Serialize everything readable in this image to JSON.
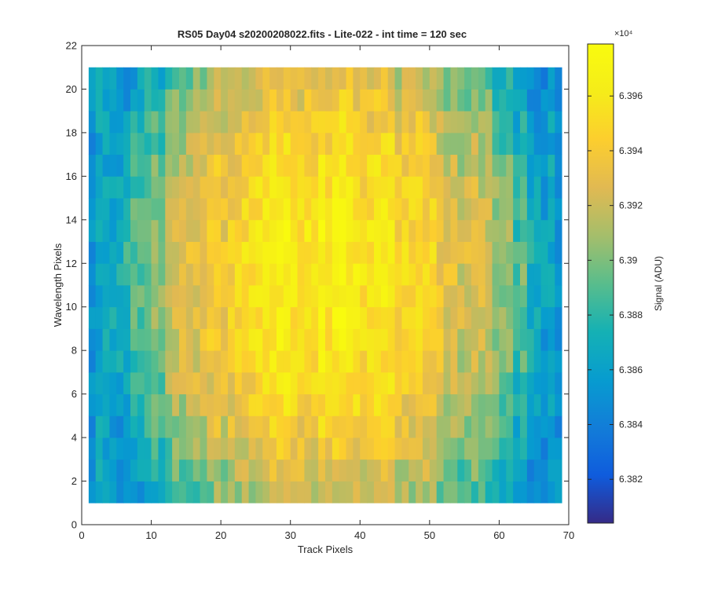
{
  "chart_data": {
    "type": "heatmap",
    "title": "RS05 Day04  s20200208022.fits - Lite-022 - int time = 120 sec",
    "xlabel": "Track Pixels",
    "ylabel": "Wavelength Pixels",
    "colorbar_label": "Signal (ADU)",
    "colorbar_exponent": "×10⁴",
    "colormap": "parula",
    "xlim": [
      0,
      70
    ],
    "ylim": [
      0,
      22
    ],
    "x_ticks": [
      0,
      10,
      20,
      30,
      40,
      50,
      60,
      70
    ],
    "y_ticks": [
      0,
      2,
      4,
      6,
      8,
      10,
      12,
      14,
      16,
      18,
      20,
      22
    ],
    "clim": [
      6.3804,
      6.3979
    ],
    "colorbar_ticks": [
      6.382,
      6.384,
      6.386,
      6.388,
      6.39,
      6.392,
      6.394,
      6.396
    ],
    "colorbar_tick_labels": [
      "6.382",
      "6.384",
      "6.386",
      "6.388",
      "6.39",
      "6.392",
      "6.394",
      "6.396"
    ],
    "track_pixels": [
      1,
      68
    ],
    "wavelength_pixels": [
      1,
      20
    ],
    "grid": false,
    "profile": {
      "track_center": 35,
      "wavelength_peak": 11.5,
      "peak_value": 6.3962,
      "edge_value": 6.3855
    }
  }
}
